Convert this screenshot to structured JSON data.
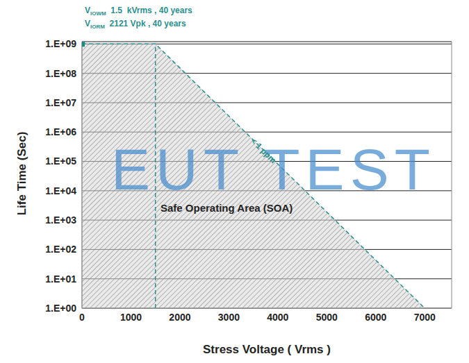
{
  "chart_data": {
    "type": "area",
    "x_label": "Stress Voltage ( Vrms )",
    "y_label": "Life Time (Sec)",
    "xlim": [
      0,
      7550
    ],
    "xticks": [
      0,
      1000,
      2000,
      3000,
      4000,
      5000,
      6000,
      7000
    ],
    "ylim": [
      1,
      1200000000
    ],
    "yticks": [
      {
        "value": 1,
        "label": "1.E+00"
      },
      {
        "value": 10,
        "label": "1.E+01"
      },
      {
        "value": 100,
        "label": "1.E+02"
      },
      {
        "value": 1000,
        "label": "1.E+03"
      },
      {
        "value": 10000,
        "label": "1.E+04"
      },
      {
        "value": 100000,
        "label": "1.E+05"
      },
      {
        "value": 1000000,
        "label": "1.E+06"
      },
      {
        "value": 10000000,
        "label": "1.E+07"
      },
      {
        "value": 100000000,
        "label": "1.E+08"
      },
      {
        "value": 1000000000,
        "label": "1.E+09"
      }
    ],
    "log": "y",
    "grid": true,
    "series": [
      {
        "type": "area",
        "x": [
          0,
          1500,
          7000
        ],
        "values": [
          1000000000,
          1000000000,
          1
        ],
        "color": "#2b8f8f",
        "line_style": "dashed"
      },
      {
        "type": "line",
        "x": [
          1500,
          1500
        ],
        "values": [
          1,
          1000000000
        ],
        "color": "#2b8f8f",
        "line_style": "dashed"
      },
      {
        "type": "scatter",
        "x": [
          0
        ],
        "values": [
          1000000000
        ],
        "color": "#1a8a84",
        "marker": "square"
      }
    ],
    "annotations": [
      {
        "symbol": "V",
        "subscript": "IOWM",
        "text": "1.5  kVrms , 40 years"
      },
      {
        "symbol": "V",
        "subscript": "IORM",
        "text": "2121 Vpk , 40 years"
      },
      {
        "text": "< 1 ppm"
      },
      {
        "text": "Safe Operating Area (SOA)"
      },
      {
        "text": "EUT TEST"
      }
    ]
  }
}
